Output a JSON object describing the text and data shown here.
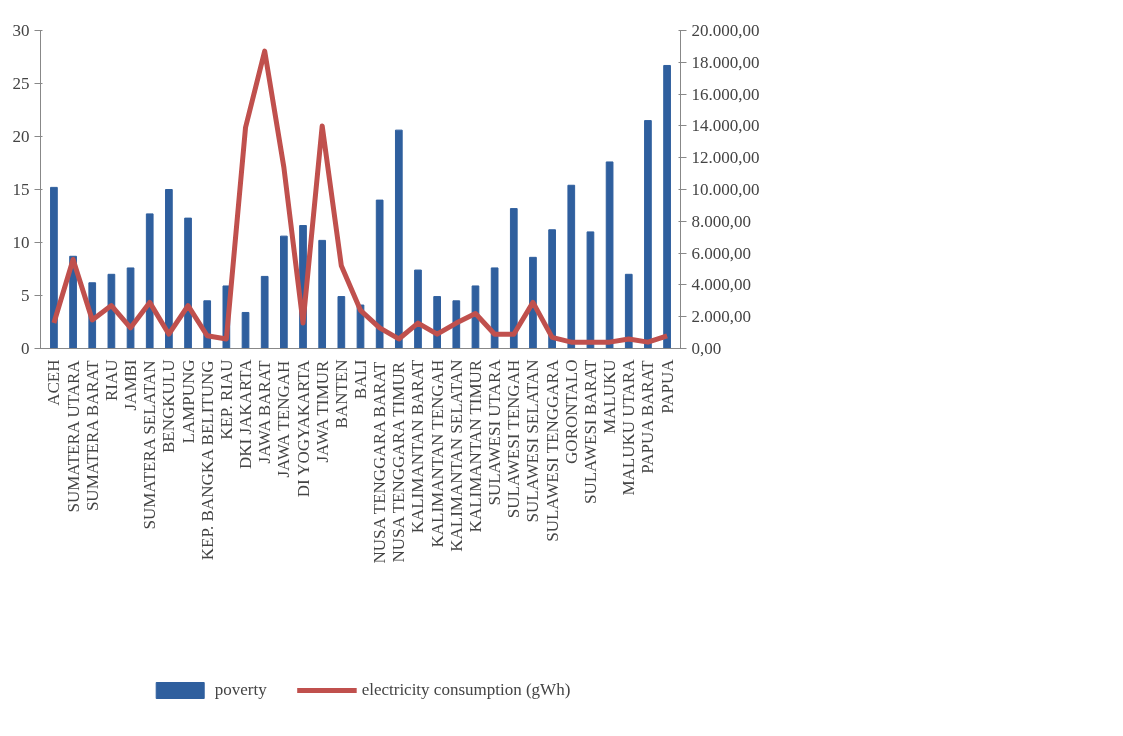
{
  "chart_data": {
    "type": "bar",
    "categories": [
      "ACEH",
      "SUMATERA UTARA",
      "SUMATERA BARAT",
      "RIAU",
      "JAMBI",
      "SUMATERA SELATAN",
      "BENGKULU",
      "LAMPUNG",
      "KEP. BANGKA BELITUNG",
      "KEP. RIAU",
      "DKI JAKARTA",
      "JAWA BARAT",
      "JAWA TENGAH",
      "DI YOGYAKARTA",
      "JAWA TIMUR",
      "BANTEN",
      "BALI",
      "NUSA TENGGARA BARAT",
      "NUSA TENGGARA TIMUR",
      "KALIMANTAN BARAT",
      "KALIMANTAN TENGAH",
      "KALIMANTAN SELATAN",
      "KALIMANTAN TIMUR",
      "SULAWESI UTARA",
      "SULAWESI TENGAH",
      "SULAWESI SELATAN",
      "SULAWESI TENGGARA",
      "GORONTALO",
      "SULAWESI BARAT",
      "MALUKU",
      "MALUKU UTARA",
      "PAPUA BARAT",
      "PAPUA"
    ],
    "series": [
      {
        "name": "poverty",
        "color": "#2f5f9e",
        "values": [
          15.2,
          8.7,
          6.2,
          7.0,
          7.6,
          12.7,
          15.0,
          12.3,
          4.5,
          5.9,
          3.4,
          6.8,
          10.6,
          11.6,
          10.2,
          4.9,
          4.1,
          14.0,
          20.6,
          7.4,
          4.9,
          4.5,
          5.9,
          7.6,
          13.2,
          8.6,
          11.2,
          15.4,
          11.0,
          17.6,
          7.0,
          21.5,
          26.7
        ]
      },
      {
        "name": "electricity consumption (gWh)",
        "type": "line",
        "axis": "y2",
        "color": "#c0504d",
        "values": [
          1600,
          5600,
          1800,
          2700,
          1300,
          2900,
          900,
          2700,
          800,
          600,
          13900,
          18700,
          11400,
          1600,
          14000,
          5200,
          2400,
          1300,
          600,
          1600,
          900,
          1600,
          2200,
          900,
          900,
          2900,
          700,
          400,
          400,
          400,
          600,
          400,
          800
        ]
      }
    ],
    "ylim": [
      0,
      30
    ],
    "yticks": [
      0,
      5,
      10,
      15,
      20,
      25,
      30
    ],
    "y2lim": [
      0,
      20000
    ],
    "y2ticks": [
      {
        "value": 0,
        "label": "0,00"
      },
      {
        "value": 2000,
        "label": "2.000,00"
      },
      {
        "value": 4000,
        "label": "4.000,00"
      },
      {
        "value": 6000,
        "label": "6.000,00"
      },
      {
        "value": 8000,
        "label": "8.000,00"
      },
      {
        "value": 10000,
        "label": "10.000,00"
      },
      {
        "value": 12000,
        "label": "12.000,00"
      },
      {
        "value": 14000,
        "label": "14.000,00"
      },
      {
        "value": 16000,
        "label": "16.000,00"
      },
      {
        "value": 18000,
        "label": "18.000,00"
      },
      {
        "value": 20000,
        "label": "20.000,00"
      }
    ],
    "grid": false,
    "legend": "bottom",
    "line_style": "solid",
    "marker": "none"
  }
}
